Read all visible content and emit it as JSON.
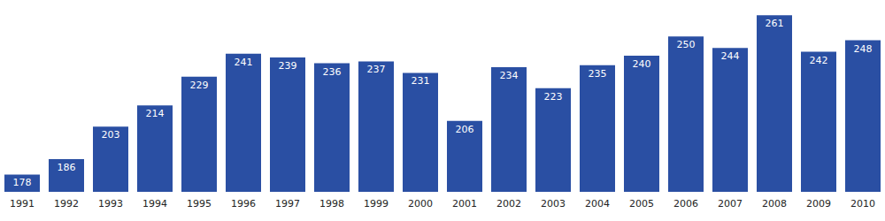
{
  "chart_data": {
    "type": "bar",
    "categories": [
      "1991",
      "1992",
      "1993",
      "1994",
      "1995",
      "1996",
      "1997",
      "1998",
      "1999",
      "2000",
      "2001",
      "2002",
      "2003",
      "2004",
      "2005",
      "2006",
      "2007",
      "2008",
      "2009",
      "2010"
    ],
    "values": [
      178,
      186,
      203,
      214,
      229,
      241,
      239,
      236,
      237,
      231,
      206,
      234,
      223,
      235,
      240,
      250,
      244,
      261,
      242,
      248
    ],
    "color": "#2a4fa3",
    "ylim": [
      169,
      269
    ],
    "grid": false,
    "data_labels": true,
    "tick_labels": "x"
  }
}
